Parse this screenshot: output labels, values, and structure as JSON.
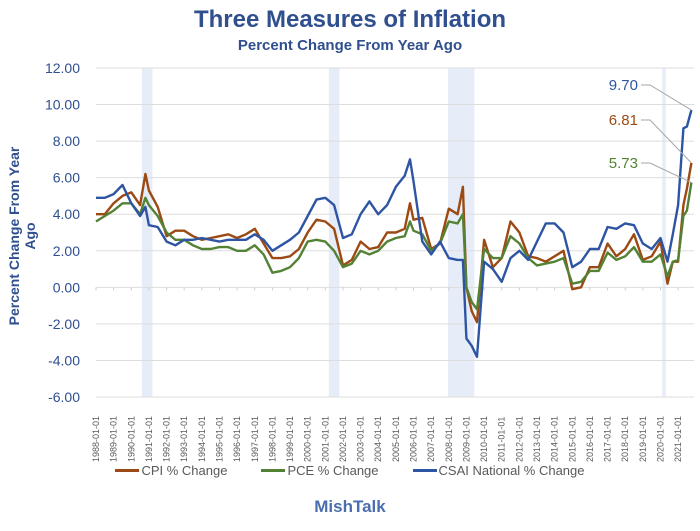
{
  "chart_data": {
    "type": "line",
    "title": "Three Measures of Inflation",
    "subtitle": "Percent Change From Year Ago",
    "xlabel": "",
    "ylabel": "Percent Change From Year Ago",
    "ylim": [
      -6,
      12
    ],
    "yticks": [
      "12.00",
      "10.00",
      "8.00",
      "6.00",
      "4.00",
      "2.00",
      "0.00",
      "-2.00",
      "-4.00",
      "-6.00"
    ],
    "ytick_values": [
      12,
      10,
      8,
      6,
      4,
      2,
      0,
      -2,
      -4,
      -6
    ],
    "xlim": [
      1988.0,
      2021.75
    ],
    "xticks": [
      "1988-01-01",
      "1989-01-01",
      "1990-01-01",
      "1991-01-01",
      "1992-01-01",
      "1993-01-01",
      "1994-01-01",
      "1995-01-01",
      "1996-01-01",
      "1997-01-01",
      "1998-01-01",
      "1999-01-01",
      "2000-01-01",
      "2001-01-01",
      "2002-01-01",
      "2003-01-01",
      "2004-01-01",
      "2005-01-01",
      "2006-01-01",
      "2007-01-01",
      "2008-01-01",
      "2009-01-01",
      "2010-01-01",
      "2011-01-01",
      "2012-01-01",
      "2013-01-01",
      "2014-01-01",
      "2015-01-01",
      "2016-01-01",
      "2017-01-01",
      "2018-01-01",
      "2019-01-01",
      "2020-01-01",
      "2021-01-01"
    ],
    "grid": true,
    "legend_position": "bottom",
    "recession_bands": [
      [
        1990.6,
        1991.2
      ],
      [
        2001.2,
        2001.8
      ],
      [
        2007.95,
        2009.45
      ],
      [
        2020.1,
        2020.3
      ]
    ],
    "x": [
      1988.0,
      1988.5,
      1989.0,
      1989.5,
      1990.0,
      1990.5,
      1990.8,
      1991.0,
      1991.5,
      1992.0,
      1992.5,
      1993.0,
      1993.5,
      1994.0,
      1994.5,
      1995.0,
      1995.5,
      1996.0,
      1996.5,
      1997.0,
      1997.5,
      1998.0,
      1998.5,
      1999.0,
      1999.5,
      2000.0,
      2000.5,
      2001.0,
      2001.5,
      2002.0,
      2002.5,
      2003.0,
      2003.5,
      2004.0,
      2004.5,
      2005.0,
      2005.5,
      2005.8,
      2006.0,
      2006.5,
      2007.0,
      2007.5,
      2008.0,
      2008.5,
      2008.8,
      2009.0,
      2009.3,
      2009.6,
      2010.0,
      2010.5,
      2011.0,
      2011.5,
      2012.0,
      2012.5,
      2013.0,
      2013.5,
      2014.0,
      2014.5,
      2015.0,
      2015.5,
      2016.0,
      2016.5,
      2017.0,
      2017.5,
      2018.0,
      2018.5,
      2019.0,
      2019.5,
      2020.0,
      2020.4,
      2020.7,
      2021.0,
      2021.3,
      2021.5,
      2021.75
    ],
    "series": [
      {
        "name": "CPI % Change",
        "color": "#9c4a14",
        "values": [
          4.0,
          4.0,
          4.6,
          5.0,
          5.2,
          4.5,
          6.2,
          5.3,
          4.4,
          2.8,
          3.1,
          3.1,
          2.8,
          2.6,
          2.7,
          2.8,
          2.9,
          2.7,
          2.9,
          3.2,
          2.4,
          1.6,
          1.6,
          1.7,
          2.1,
          3.0,
          3.7,
          3.6,
          3.2,
          1.2,
          1.5,
          2.5,
          2.1,
          2.2,
          3.0,
          3.0,
          3.2,
          4.6,
          3.7,
          3.8,
          2.1,
          2.4,
          4.3,
          4.0,
          5.5,
          0.0,
          -1.3,
          -1.9,
          2.6,
          1.1,
          1.6,
          3.6,
          3.0,
          1.7,
          1.6,
          1.4,
          1.7,
          2.0,
          -0.1,
          0.0,
          1.1,
          1.1,
          2.4,
          1.7,
          2.1,
          2.9,
          1.5,
          1.7,
          2.5,
          0.2,
          1.4,
          1.4,
          4.5,
          5.4,
          6.81
        ]
      },
      {
        "name": "PCE % Change",
        "color": "#548235",
        "values": [
          3.6,
          3.9,
          4.2,
          4.6,
          4.6,
          4.0,
          4.9,
          4.5,
          3.9,
          3.0,
          2.6,
          2.6,
          2.3,
          2.1,
          2.1,
          2.2,
          2.2,
          2.0,
          2.0,
          2.3,
          1.8,
          0.8,
          0.9,
          1.1,
          1.6,
          2.5,
          2.6,
          2.5,
          2.0,
          1.1,
          1.3,
          2.0,
          1.8,
          2.0,
          2.5,
          2.7,
          2.8,
          3.6,
          3.1,
          2.9,
          2.0,
          2.4,
          3.6,
          3.5,
          4.0,
          0.0,
          -0.8,
          -1.2,
          2.1,
          1.6,
          1.6,
          2.8,
          2.4,
          1.6,
          1.2,
          1.3,
          1.4,
          1.6,
          0.2,
          0.3,
          0.9,
          0.9,
          1.9,
          1.5,
          1.7,
          2.2,
          1.4,
          1.4,
          1.8,
          0.6,
          1.4,
          1.5,
          3.9,
          4.2,
          5.73
        ]
      },
      {
        "name": "CSAI National % Change",
        "color": "#2e55a3",
        "values": [
          4.9,
          4.9,
          5.1,
          5.6,
          4.6,
          3.9,
          4.4,
          3.4,
          3.3,
          2.5,
          2.3,
          2.6,
          2.6,
          2.7,
          2.6,
          2.5,
          2.6,
          2.6,
          2.6,
          2.9,
          2.6,
          2.0,
          2.3,
          2.6,
          3.0,
          3.9,
          4.8,
          4.9,
          4.5,
          2.7,
          2.9,
          4.0,
          4.7,
          4.0,
          4.5,
          5.5,
          6.1,
          7.0,
          5.8,
          2.5,
          1.8,
          2.5,
          1.6,
          1.5,
          1.5,
          -2.8,
          -3.2,
          -3.8,
          1.4,
          1.0,
          0.3,
          1.6,
          2.0,
          1.5,
          2.5,
          3.5,
          3.5,
          3.0,
          1.1,
          1.4,
          2.1,
          2.1,
          3.3,
          3.2,
          3.5,
          3.4,
          2.4,
          2.1,
          2.7,
          1.4,
          2.9,
          4.5,
          8.7,
          8.8,
          9.7
        ]
      }
    ],
    "annotations": [
      {
        "text": "9.70",
        "series": "CSAI National % Change",
        "color": "#2e55a3"
      },
      {
        "text": "6.81",
        "series": "CPI % Change",
        "color": "#9c4a14"
      },
      {
        "text": "5.73",
        "series": "PCE % Change",
        "color": "#548235"
      }
    ]
  },
  "footer": {
    "label": "MishTalk"
  },
  "colors": {
    "title": "#2f4f8f",
    "axis_text": "#2f4f8f",
    "recession_band": "#e7edf8",
    "gridline": "#dddddd"
  }
}
